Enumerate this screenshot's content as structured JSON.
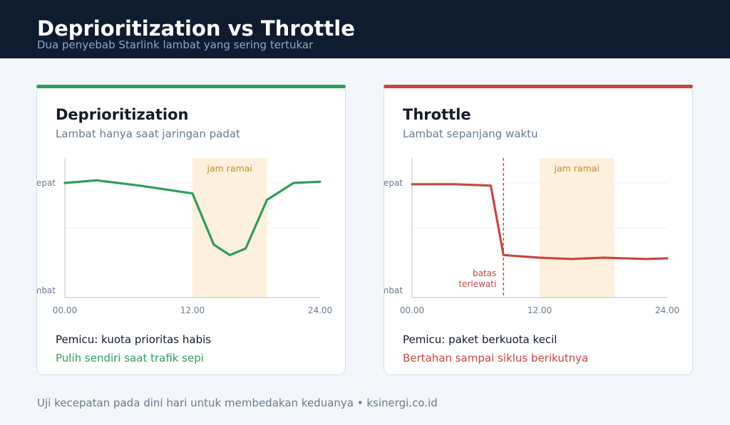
{
  "header": {
    "title": "Deprioritization vs Throttle",
    "subtitle": "Dua penyebab Starlink lambat yang sering tertukar"
  },
  "cards": [
    {
      "title": "Deprioritization",
      "description": "Lambat hanya saat jaringan padat",
      "trigger": "Pemicu: kuota prioritas habis",
      "note": "Pulih sendiri saat trafik sepi",
      "accent_color": "#2e9e5b",
      "chart_data": {
        "type": "line",
        "x_ticks": [
          "00.00",
          "12.00",
          "24.00"
        ],
        "y_ticks": [
          "cepat",
          "lambat"
        ],
        "xlim": [
          0,
          24
        ],
        "ylim": [
          0,
          1
        ],
        "band": {
          "label": "jam ramai",
          "x_start": 12,
          "x_end": 19
        },
        "series": [
          {
            "x": [
              0,
              3,
              7,
              12,
              14,
              15.5,
              17,
              19,
              21.5,
              24
            ],
            "y": [
              0.82,
              0.84,
              0.8,
              0.74,
              0.35,
              0.27,
              0.32,
              0.69,
              0.82,
              0.83
            ]
          }
        ]
      }
    },
    {
      "title": "Throttle",
      "description": "Lambat sepanjang waktu",
      "trigger": "Pemicu: paket berkuota kecil",
      "note": "Bertahan sampai siklus berikutnya",
      "accent_color": "#c8473f",
      "chart_data": {
        "type": "line",
        "x_ticks": [
          "00.00",
          "12.00",
          "24.00"
        ],
        "y_ticks": [
          "cepat",
          "lambat"
        ],
        "xlim": [
          0,
          24
        ],
        "ylim": [
          0,
          1
        ],
        "band": {
          "label": "jam ramai",
          "x_start": 12,
          "x_end": 19
        },
        "marker": {
          "x": 8.6,
          "label_lines": [
            "batas",
            "terlewati"
          ]
        },
        "series": [
          {
            "x": [
              0,
              4,
              7.4,
              8.6,
              12,
              15,
              18,
              22,
              24
            ],
            "y": [
              0.81,
              0.81,
              0.8,
              0.27,
              0.25,
              0.24,
              0.25,
              0.24,
              0.245
            ]
          }
        ]
      }
    }
  ],
  "footer": "Uji kecepatan pada dini hari untuk membedakan keduanya • ksinergi.co.id"
}
